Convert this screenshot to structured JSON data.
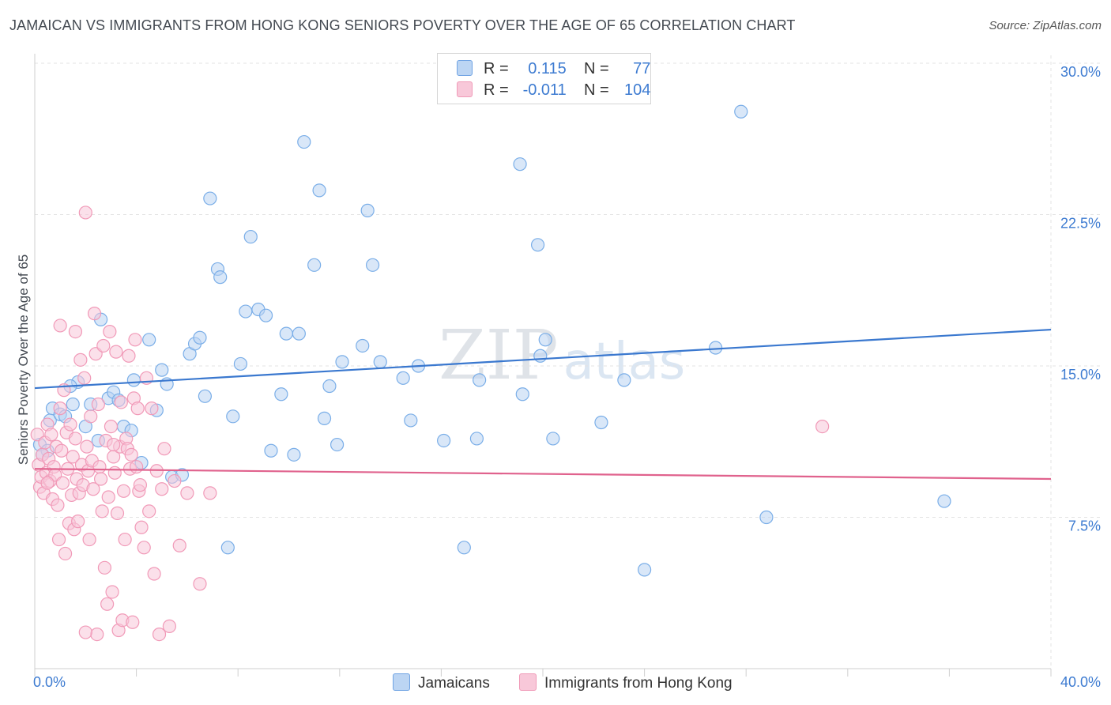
{
  "header": {
    "title": "JAMAICAN VS IMMIGRANTS FROM HONG KONG SENIORS POVERTY OVER THE AGE OF 65 CORRELATION CHART",
    "source": "Source: ZipAtlas.com"
  },
  "watermark": {
    "zip": "ZIP",
    "atlas": "atlas"
  },
  "legend": {
    "rows": [
      {
        "r_label": "R =",
        "r_value": "0.115",
        "n_label": "N =",
        "n_value": "77"
      },
      {
        "r_label": "R =",
        "r_value": "-0.011",
        "n_label": "N =",
        "n_value": "104"
      }
    ]
  },
  "chart_data": {
    "type": "scatter",
    "title": "JAMAICAN VS IMMIGRANTS FROM HONG KONG SENIORS POVERTY OVER THE AGE OF 65 CORRELATION CHART",
    "xlabel": "",
    "ylabel": "Seniors Poverty Over the Age of 65",
    "xlim": [
      0,
      40
    ],
    "ylim": [
      0,
      30
    ],
    "x_tick_labels": [
      "0.0%",
      "40.0%"
    ],
    "y_ticks": [
      7.5,
      15.0,
      22.5,
      30.0
    ],
    "y_tick_labels": [
      "7.5%",
      "15.0%",
      "22.5%",
      "30.0%"
    ],
    "grid": true,
    "series": [
      {
        "name": "Jamaicans",
        "color": "#7aaee8",
        "fill": "#b9d3f2",
        "line_color": "#3a78cf",
        "trend": [
          [
            0,
            13.9
          ],
          [
            40,
            16.8
          ]
        ],
        "points": [
          [
            0.2,
            11.1
          ],
          [
            0.5,
            10.8
          ],
          [
            0.6,
            12.3
          ],
          [
            0.7,
            12.9
          ],
          [
            1.0,
            12.6
          ],
          [
            1.2,
            12.5
          ],
          [
            1.5,
            13.1
          ],
          [
            1.7,
            14.2
          ],
          [
            2.0,
            12.0
          ],
          [
            2.2,
            13.1
          ],
          [
            2.5,
            11.3
          ],
          [
            2.6,
            17.3
          ],
          [
            2.9,
            13.4
          ],
          [
            3.1,
            13.7
          ],
          [
            3.3,
            13.3
          ],
          [
            3.5,
            12.0
          ],
          [
            3.8,
            11.8
          ],
          [
            3.9,
            14.3
          ],
          [
            4.2,
            10.2
          ],
          [
            4.5,
            16.3
          ],
          [
            4.8,
            12.8
          ],
          [
            5.0,
            14.8
          ],
          [
            5.2,
            14.1
          ],
          [
            5.4,
            9.5
          ],
          [
            5.8,
            9.6
          ],
          [
            6.1,
            15.6
          ],
          [
            6.3,
            16.1
          ],
          [
            6.5,
            16.4
          ],
          [
            6.7,
            13.5
          ],
          [
            6.9,
            23.3
          ],
          [
            7.2,
            19.8
          ],
          [
            7.3,
            19.4
          ],
          [
            7.6,
            6.0
          ],
          [
            7.8,
            12.5
          ],
          [
            8.1,
            15.1
          ],
          [
            8.3,
            17.7
          ],
          [
            8.5,
            21.4
          ],
          [
            8.8,
            17.8
          ],
          [
            9.1,
            17.5
          ],
          [
            9.3,
            10.8
          ],
          [
            9.7,
            13.6
          ],
          [
            9.9,
            16.6
          ],
          [
            10.2,
            10.6
          ],
          [
            10.4,
            16.6
          ],
          [
            10.6,
            26.1
          ],
          [
            11.0,
            20.0
          ],
          [
            11.2,
            23.7
          ],
          [
            11.4,
            12.4
          ],
          [
            11.6,
            14.0
          ],
          [
            11.9,
            11.1
          ],
          [
            12.1,
            15.2
          ],
          [
            12.9,
            16.0
          ],
          [
            13.1,
            22.7
          ],
          [
            13.3,
            20.0
          ],
          [
            13.6,
            15.2
          ],
          [
            14.5,
            14.4
          ],
          [
            14.8,
            12.3
          ],
          [
            15.1,
            15.0
          ],
          [
            16.1,
            11.3
          ],
          [
            16.9,
            6.0
          ],
          [
            17.4,
            11.4
          ],
          [
            17.5,
            14.3
          ],
          [
            19.1,
            25.0
          ],
          [
            19.2,
            13.6
          ],
          [
            19.8,
            21.0
          ],
          [
            19.9,
            15.5
          ],
          [
            20.1,
            16.3
          ],
          [
            20.4,
            11.4
          ],
          [
            22.3,
            12.2
          ],
          [
            23.2,
            14.3
          ],
          [
            24.0,
            4.9
          ],
          [
            26.8,
            15.9
          ],
          [
            27.8,
            27.6
          ],
          [
            28.8,
            7.5
          ],
          [
            35.8,
            8.3
          ],
          [
            1.4,
            14.0
          ],
          [
            0.3,
            10.6
          ]
        ]
      },
      {
        "name": "Immigrants from Hong Kong",
        "color": "#f19ab8",
        "fill": "#f7c7d8",
        "line_color": "#e0628d",
        "trend": [
          [
            0,
            9.9
          ],
          [
            40,
            9.4
          ]
        ],
        "points": [
          [
            0.1,
            11.6
          ],
          [
            0.15,
            10.1
          ],
          [
            0.2,
            9.0
          ],
          [
            0.25,
            9.5
          ],
          [
            0.3,
            10.6
          ],
          [
            0.35,
            8.7
          ],
          [
            0.4,
            11.2
          ],
          [
            0.45,
            9.7
          ],
          [
            0.5,
            12.1
          ],
          [
            0.55,
            10.4
          ],
          [
            0.6,
            9.3
          ],
          [
            0.65,
            11.6
          ],
          [
            0.7,
            8.4
          ],
          [
            0.75,
            10.0
          ],
          [
            0.8,
            9.6
          ],
          [
            0.85,
            11.0
          ],
          [
            0.9,
            8.1
          ],
          [
            0.95,
            6.4
          ],
          [
            1.0,
            12.9
          ],
          [
            1.05,
            10.8
          ],
          [
            1.1,
            9.2
          ],
          [
            1.15,
            13.8
          ],
          [
            1.2,
            5.7
          ],
          [
            1.25,
            11.7
          ],
          [
            1.3,
            9.9
          ],
          [
            1.35,
            7.2
          ],
          [
            1.4,
            12.1
          ],
          [
            1.45,
            8.6
          ],
          [
            1.5,
            10.5
          ],
          [
            1.55,
            6.9
          ],
          [
            1.6,
            11.4
          ],
          [
            1.65,
            9.4
          ],
          [
            1.7,
            7.3
          ],
          [
            1.75,
            8.7
          ],
          [
            1.8,
            15.3
          ],
          [
            1.85,
            10.1
          ],
          [
            1.9,
            9.1
          ],
          [
            1.95,
            14.4
          ],
          [
            2.0,
            22.6
          ],
          [
            2.05,
            11.0
          ],
          [
            2.1,
            9.8
          ],
          [
            2.15,
            6.4
          ],
          [
            2.2,
            12.5
          ],
          [
            2.25,
            10.3
          ],
          [
            2.3,
            8.9
          ],
          [
            2.35,
            17.6
          ],
          [
            2.4,
            15.6
          ],
          [
            2.45,
            1.7
          ],
          [
            2.5,
            13.1
          ],
          [
            2.55,
            10.0
          ],
          [
            2.6,
            9.4
          ],
          [
            2.65,
            7.8
          ],
          [
            2.7,
            16.0
          ],
          [
            2.75,
            5.0
          ],
          [
            2.8,
            11.3
          ],
          [
            2.85,
            3.2
          ],
          [
            2.9,
            8.5
          ],
          [
            2.95,
            16.7
          ],
          [
            3.0,
            12.0
          ],
          [
            3.05,
            3.8
          ],
          [
            3.1,
            10.5
          ],
          [
            3.15,
            9.7
          ],
          [
            3.2,
            15.7
          ],
          [
            3.25,
            7.7
          ],
          [
            3.3,
            1.9
          ],
          [
            3.35,
            11.0
          ],
          [
            3.4,
            13.2
          ],
          [
            3.45,
            2.4
          ],
          [
            3.5,
            8.8
          ],
          [
            3.55,
            6.4
          ],
          [
            3.6,
            11.4
          ],
          [
            3.65,
            10.9
          ],
          [
            3.7,
            15.5
          ],
          [
            3.75,
            9.9
          ],
          [
            3.8,
            10.6
          ],
          [
            3.85,
            2.3
          ],
          [
            3.9,
            13.4
          ],
          [
            3.95,
            16.3
          ],
          [
            4.0,
            10.0
          ],
          [
            4.05,
            12.9
          ],
          [
            4.1,
            8.8
          ],
          [
            4.15,
            9.1
          ],
          [
            4.2,
            7.0
          ],
          [
            4.3,
            6.0
          ],
          [
            4.4,
            14.4
          ],
          [
            4.5,
            7.8
          ],
          [
            4.6,
            12.9
          ],
          [
            4.7,
            4.7
          ],
          [
            4.8,
            9.8
          ],
          [
            4.9,
            1.7
          ],
          [
            5.0,
            8.9
          ],
          [
            5.1,
            10.9
          ],
          [
            5.3,
            2.1
          ],
          [
            5.5,
            9.3
          ],
          [
            5.7,
            6.1
          ],
          [
            6.0,
            8.7
          ],
          [
            6.5,
            4.2
          ],
          [
            6.9,
            8.7
          ],
          [
            1.6,
            16.7
          ],
          [
            0.5,
            9.2
          ],
          [
            1.0,
            17.0
          ],
          [
            3.1,
            11.1
          ],
          [
            31.0,
            12.0
          ],
          [
            2.0,
            1.8
          ]
        ]
      }
    ],
    "legend": [
      "Jamaicans",
      "Immigrants from Hong Kong"
    ]
  }
}
